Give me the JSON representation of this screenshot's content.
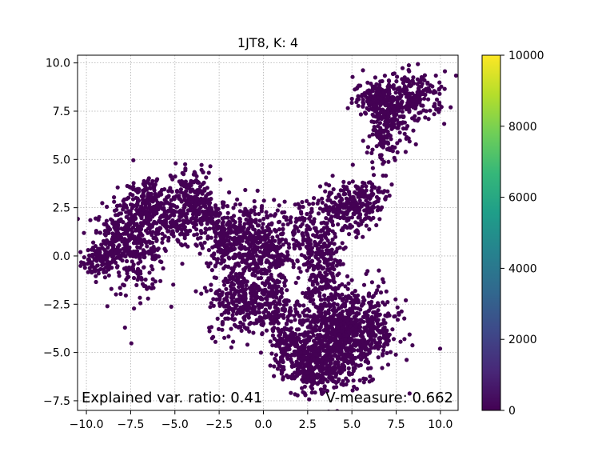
{
  "chart_data": {
    "type": "scatter",
    "title": "1JT8, K: 4",
    "xlabel": "",
    "ylabel": "",
    "xlim": [
      -10.5,
      11.0
    ],
    "ylim": [
      -8.0,
      10.4
    ],
    "xticks": [
      -10.0,
      -7.5,
      -5.0,
      -2.5,
      0.0,
      2.5,
      5.0,
      7.5,
      10.0
    ],
    "yticks": [
      -7.5,
      -5.0,
      -2.5,
      0.0,
      2.5,
      5.0,
      7.5,
      10.0
    ],
    "xtick_labels": [
      "−10.0",
      "−7.5",
      "−5.0",
      "−2.5",
      "0.0",
      "2.5",
      "5.0",
      "7.5",
      "10.0"
    ],
    "ytick_labels": [
      "−7.5",
      "−5.0",
      "−2.5",
      "0.0",
      "2.5",
      "5.0",
      "7.5",
      "10.0"
    ],
    "grid": true,
    "point_color": "#440154",
    "clusters": [
      {
        "cx": -9.3,
        "cy": -0.3,
        "sx": 0.5,
        "sy": 0.4,
        "n": 90
      },
      {
        "cx": -8.4,
        "cy": 1.0,
        "sx": 0.6,
        "sy": 0.8,
        "n": 160
      },
      {
        "cx": -7.0,
        "cy": 0.7,
        "sx": 0.8,
        "sy": 1.3,
        "n": 320
      },
      {
        "cx": -6.4,
        "cy": 2.9,
        "sx": 0.7,
        "sy": 0.6,
        "n": 160
      },
      {
        "cx": -5.3,
        "cy": 1.7,
        "sx": 0.6,
        "sy": 0.6,
        "n": 110
      },
      {
        "cx": -4.0,
        "cy": 3.0,
        "sx": 0.6,
        "sy": 0.8,
        "n": 180
      },
      {
        "cx": -3.0,
        "cy": 2.0,
        "sx": 0.6,
        "sy": 0.5,
        "n": 120
      },
      {
        "cx": -2.0,
        "cy": 0.6,
        "sx": 0.6,
        "sy": 0.8,
        "n": 160
      },
      {
        "cx": -0.6,
        "cy": 0.8,
        "sx": 0.9,
        "sy": 1.0,
        "n": 290
      },
      {
        "cx": 0.5,
        "cy": 0.0,
        "sx": 0.5,
        "sy": 0.6,
        "n": 90
      },
      {
        "cx": -1.2,
        "cy": -2.3,
        "sx": 1.0,
        "sy": 0.9,
        "n": 290
      },
      {
        "cx": 0.6,
        "cy": -2.6,
        "sx": 0.7,
        "sy": 0.8,
        "n": 160
      },
      {
        "cx": 1.2,
        "cy": -4.5,
        "sx": 0.4,
        "sy": 0.6,
        "n": 70
      },
      {
        "cx": 2.2,
        "cy": -5.6,
        "sx": 0.8,
        "sy": 0.7,
        "n": 200
      },
      {
        "cx": 3.6,
        "cy": -5.3,
        "sx": 0.9,
        "sy": 0.9,
        "n": 360
      },
      {
        "cx": 4.0,
        "cy": -3.6,
        "sx": 1.0,
        "sy": 0.8,
        "n": 320
      },
      {
        "cx": 5.7,
        "cy": -3.8,
        "sx": 1.0,
        "sy": 1.1,
        "n": 380
      },
      {
        "cx": 3.2,
        "cy": -1.5,
        "sx": 0.6,
        "sy": 0.9,
        "n": 140
      },
      {
        "cx": 2.5,
        "cy": 1.3,
        "sx": 0.6,
        "sy": 0.8,
        "n": 120
      },
      {
        "cx": 3.6,
        "cy": 0.3,
        "sx": 0.5,
        "sy": 0.6,
        "n": 90
      },
      {
        "cx": 4.5,
        "cy": 2.5,
        "sx": 0.7,
        "sy": 0.7,
        "n": 170
      },
      {
        "cx": 5.8,
        "cy": 2.9,
        "sx": 0.6,
        "sy": 0.6,
        "n": 110
      },
      {
        "cx": 6.6,
        "cy": 5.8,
        "sx": 0.4,
        "sy": 0.7,
        "n": 70
      },
      {
        "cx": 7.3,
        "cy": 7.2,
        "sx": 0.7,
        "sy": 0.7,
        "n": 160
      },
      {
        "cx": 6.3,
        "cy": 8.2,
        "sx": 0.6,
        "sy": 0.5,
        "n": 120
      },
      {
        "cx": 8.4,
        "cy": 8.3,
        "sx": 1.0,
        "sy": 0.6,
        "n": 220
      }
    ],
    "colorbar": {
      "min": 0,
      "max": 10000,
      "ticks": [
        0,
        2000,
        4000,
        6000,
        8000,
        10000
      ],
      "tick_labels": [
        "0",
        "2000",
        "4000",
        "6000",
        "8000",
        "10000"
      ],
      "colors": [
        "#440154",
        "#482878",
        "#3e4989",
        "#31688e",
        "#26828e",
        "#1f9e89",
        "#35b779",
        "#6ece58",
        "#b5de2b",
        "#fde725"
      ]
    },
    "annotations": {
      "left": "Explained var. ratio: 0.41",
      "right": "V-measure: 0.662"
    }
  }
}
